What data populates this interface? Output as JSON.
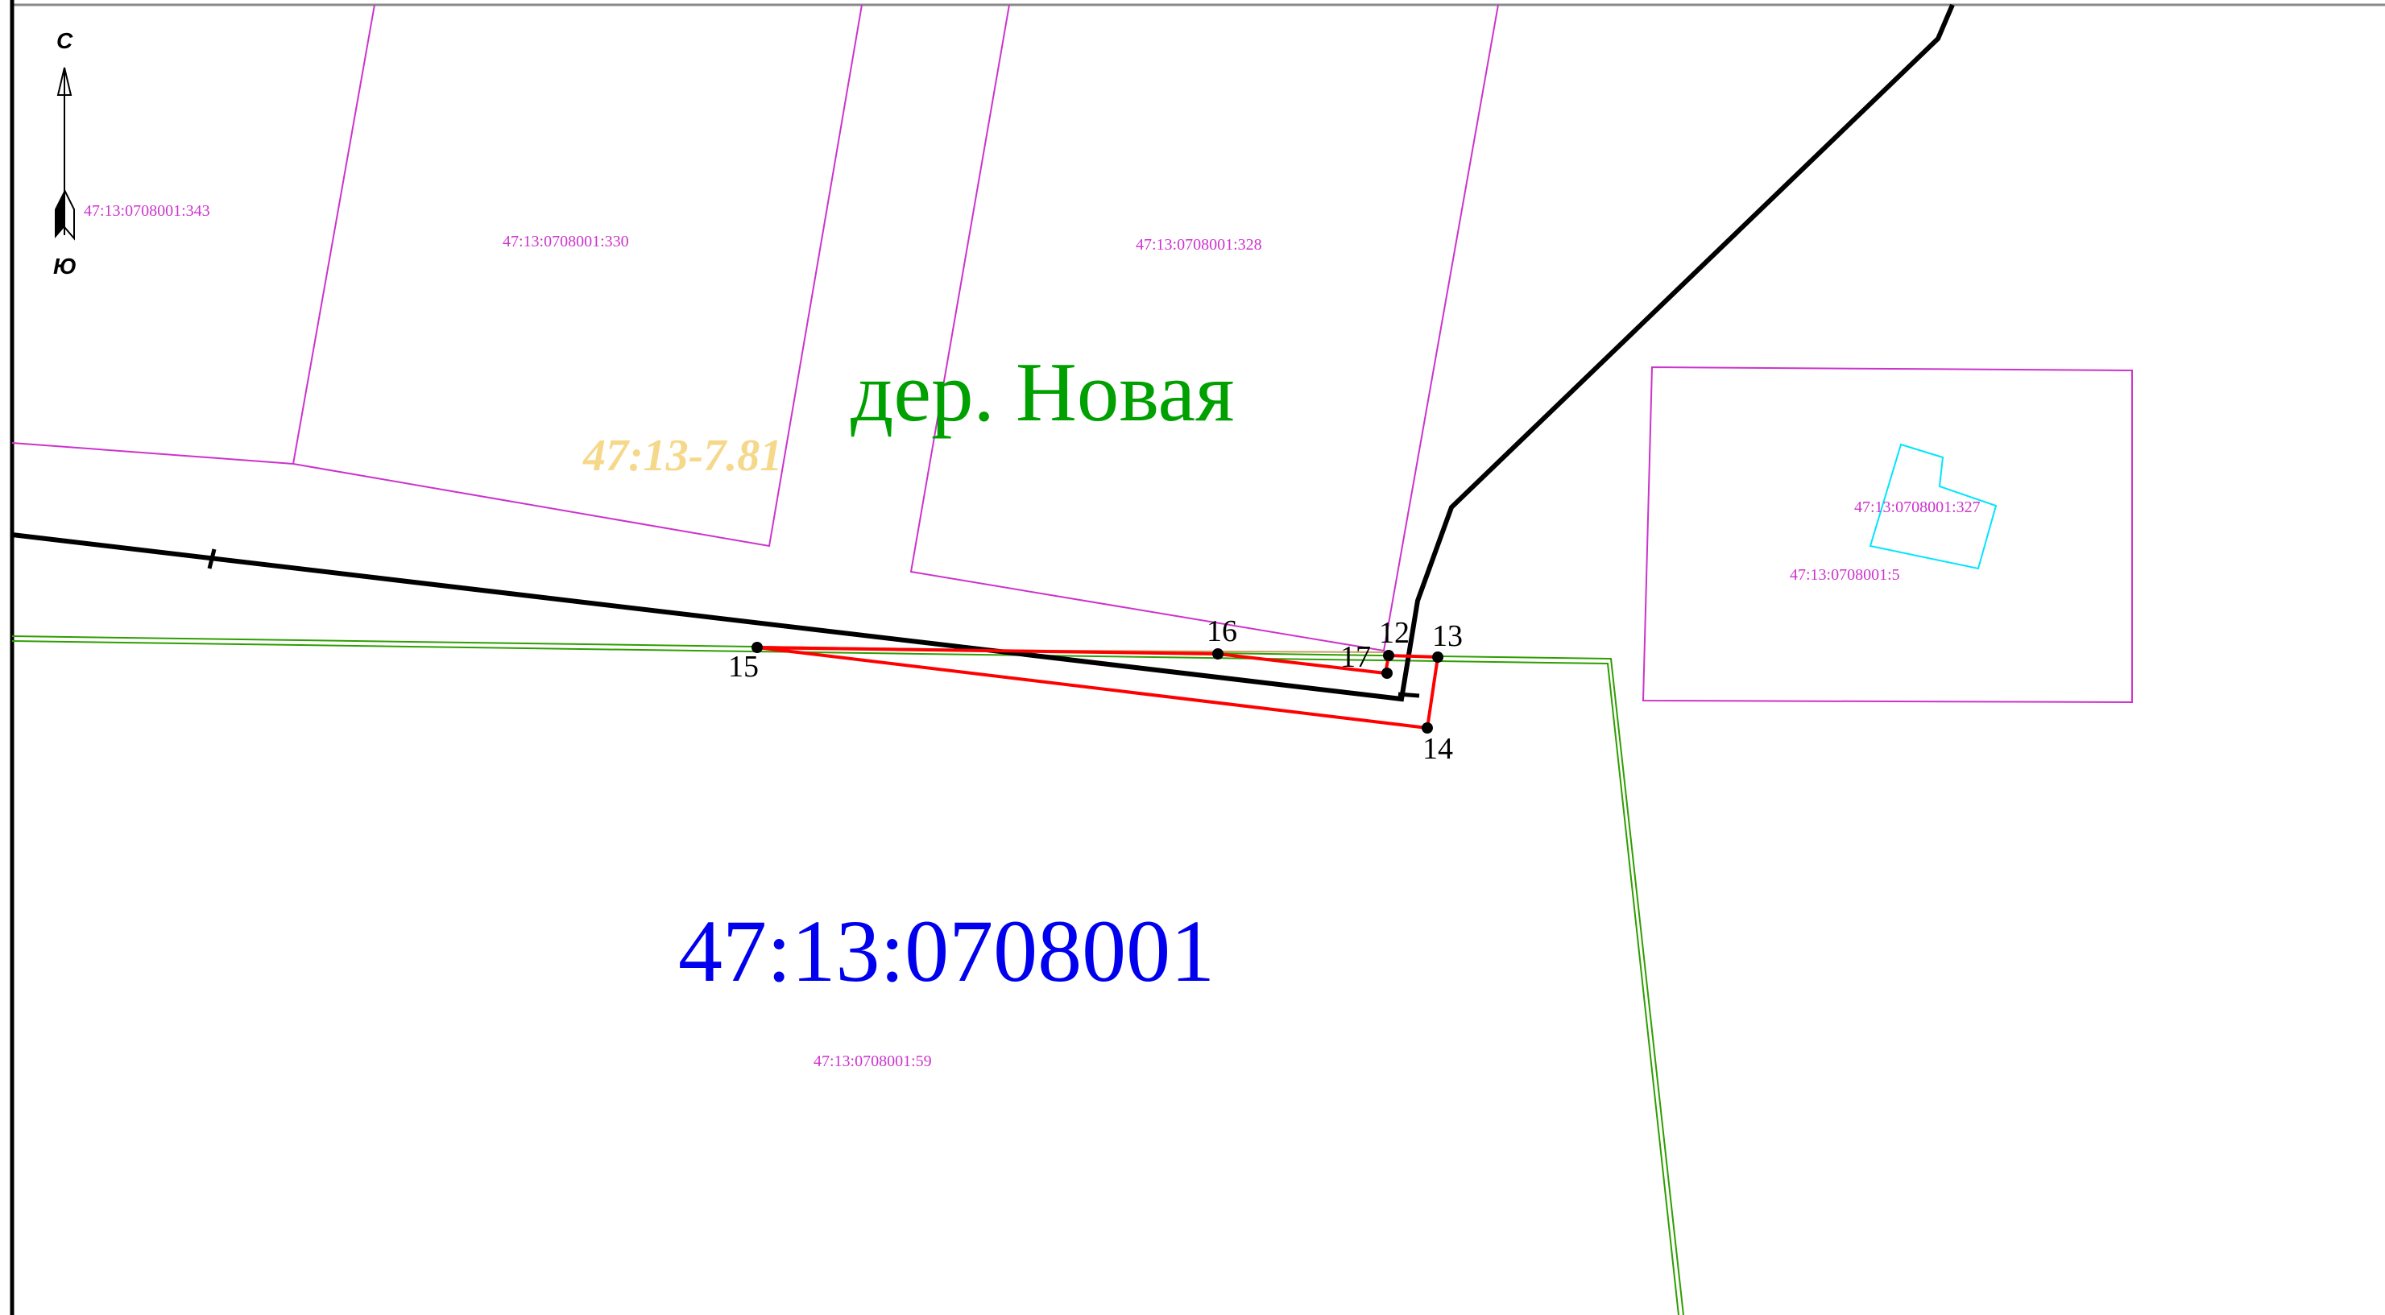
{
  "map": {
    "settlement_label": "дер. Новая",
    "quarter_label": "47:13:0708001",
    "zone_label": "47:13-7.81",
    "compass": {
      "north": "С",
      "south": "Ю"
    },
    "parcels": [
      {
        "id": "343",
        "label": "47:13:0708001:343"
      },
      {
        "id": "330",
        "label": "47:13:0708001:330"
      },
      {
        "id": "328",
        "label": "47:13:0708001:328"
      },
      {
        "id": "327",
        "label": "47:13:0708001:327"
      },
      {
        "id": "5",
        "label": "47:13:0708001:5"
      },
      {
        "id": "59",
        "label": "47:13:0708001:59"
      }
    ],
    "points": [
      "12",
      "13",
      "14",
      "15",
      "16",
      "17"
    ],
    "colors": {
      "parcel_boundary": "#cc33cc",
      "quarter_label": "#0000ee",
      "settlement_label": "#00a000",
      "zone_label": "#f5d88a",
      "formed_parcel": "#ff0000",
      "settlement_boundary": "#000000",
      "road_line": "#2e9e00",
      "building": "#00e5ff"
    }
  }
}
